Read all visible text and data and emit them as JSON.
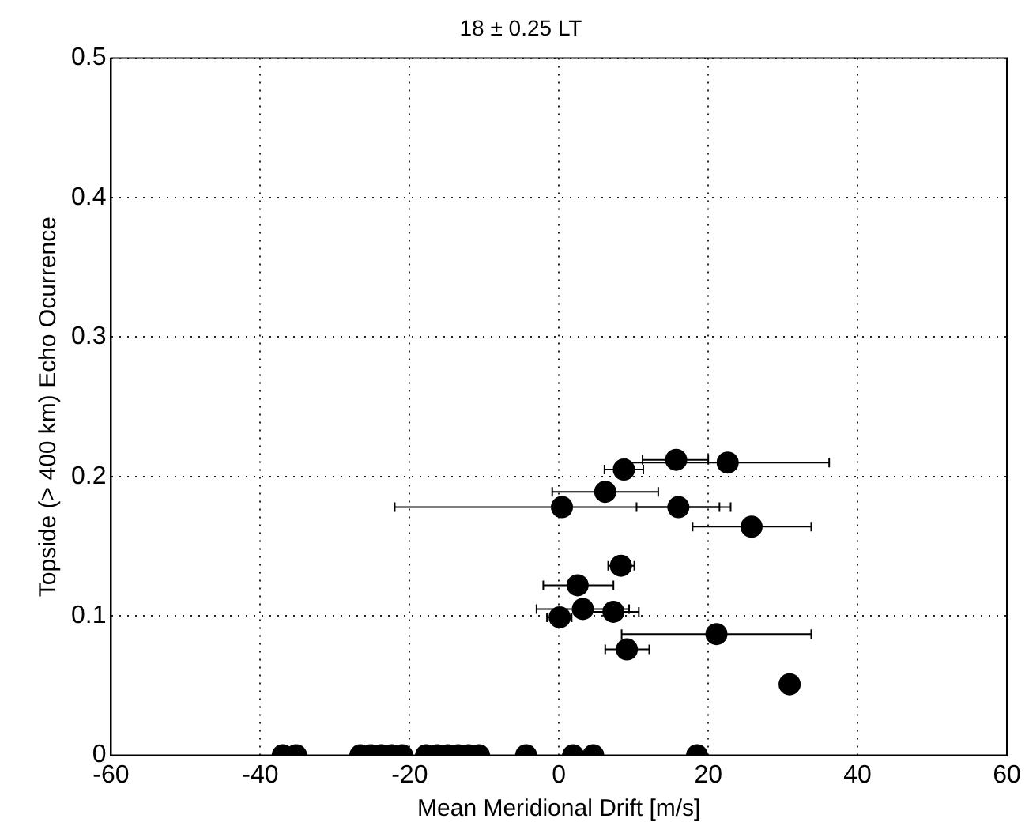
{
  "chart_data": {
    "type": "scatter",
    "title": "18 ± 0.25 LT",
    "xlabel": "Mean Meridional Drift [m/s]",
    "ylabel": "Topside (> 400 km) Echo Ocurrence",
    "xlim": [
      -60,
      60
    ],
    "xticks": [
      -60,
      -40,
      -20,
      0,
      20,
      40,
      60
    ],
    "ylim": [
      0,
      0.5
    ],
    "yticks": [
      0,
      0.1,
      0.2,
      0.3,
      0.4,
      0.5
    ],
    "grid": true,
    "legend": false,
    "marker": "circle",
    "series": [
      {
        "color": "#000000",
        "x": [
          15.7,
          22.6,
          8.7,
          6.2,
          0.4,
          16.0,
          25.8,
          8.3,
          2.5,
          3.2,
          7.3,
          0.1,
          21.1,
          9.1,
          30.9,
          -37,
          -35.2,
          -26.6,
          -25.2,
          -23.8,
          -22.4,
          -21,
          -17.8,
          -16.3,
          -14.9,
          -13.5,
          -12.1,
          -10.7,
          -4.4,
          1.9,
          4.6,
          18.5
        ],
        "values": [
          0.212,
          0.21,
          0.205,
          0.189,
          0.178,
          0.178,
          0.164,
          0.136,
          0.122,
          0.105,
          0.103,
          0.099,
          0.087,
          0.076,
          0.051,
          0,
          0,
          0,
          0,
          0,
          0,
          0,
          0,
          0,
          0,
          0,
          0,
          0,
          0,
          0,
          0,
          0
        ],
        "xerrors": [
          [
            11.2,
            20
          ],
          [
            9,
            36.2
          ],
          [
            6.1,
            11.3
          ],
          [
            -0.9,
            13.3
          ],
          [
            -22,
            23
          ],
          [
            10.4,
            21.5
          ],
          [
            17.9,
            33.8
          ],
          [
            6.6,
            10.1
          ],
          [
            -2.1,
            7.3
          ],
          [
            -3,
            9.4
          ],
          [
            4,
            10.7
          ],
          [
            -1.6,
            1.7
          ],
          [
            8.4,
            33.8
          ],
          [
            6.2,
            12.1
          ],
          null,
          null,
          null,
          null,
          null,
          null,
          null,
          null,
          null,
          null,
          null,
          null,
          null,
          null,
          null,
          null,
          null,
          null
        ]
      }
    ]
  }
}
